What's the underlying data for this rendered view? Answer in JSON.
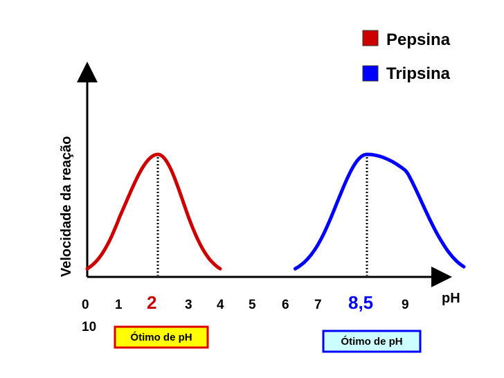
{
  "chart_data": {
    "type": "line",
    "title": "",
    "xlabel": "pH",
    "ylabel": "Velocidade da reação",
    "x_ticks": [
      "0",
      "1",
      "2",
      "3",
      "4",
      "5",
      "6",
      "7",
      "8,5",
      "9",
      "10"
    ],
    "highlight_ticks": [
      "2",
      "8,5"
    ],
    "series": [
      {
        "name": "Pepsina",
        "color": "#cc0000",
        "optimum": 2,
        "range": [
          0,
          4
        ],
        "peak": 1
      },
      {
        "name": "Tripsina",
        "color": "#0000ff",
        "optimum": 8.5,
        "range": [
          6.3,
          10.6
        ],
        "peak": 1
      }
    ],
    "annotations": [
      {
        "text": "Ótimo de pH",
        "series": "Pepsina",
        "bg": "#ffff00",
        "border": "#dd0000"
      },
      {
        "text": "Ótimo de pH",
        "series": "Tripsina",
        "bg": "#ccffff",
        "border": "#0000ff"
      }
    ],
    "legend": "top-right",
    "grid": false
  }
}
